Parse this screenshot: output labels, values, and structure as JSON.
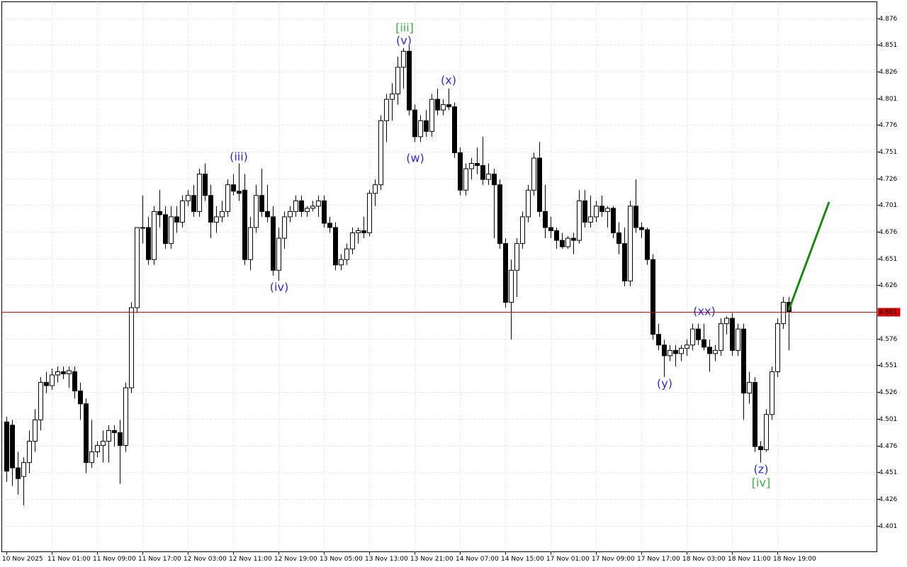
{
  "chart_data": {
    "type": "candlestick",
    "categories": [
      "10 Nov 2025",
      null,
      null,
      null,
      null,
      null,
      null,
      null,
      "11 Nov 01:00",
      null,
      null,
      null,
      null,
      null,
      null,
      null,
      "11 Nov 09:00",
      null,
      null,
      null,
      null,
      null,
      null,
      null,
      "11 Nov 17:00",
      null,
      null,
      null,
      null,
      null,
      null,
      null,
      "12 Nov 03:00",
      null,
      null,
      null,
      null,
      null,
      null,
      null,
      "12 Nov 11:00",
      null,
      null,
      null,
      null,
      null,
      null,
      null,
      "12 Nov 19:00",
      null,
      null,
      null,
      null,
      null,
      null,
      null,
      "13 Nov 05:00",
      null,
      null,
      null,
      null,
      null,
      null,
      null,
      "13 Nov 13:00",
      null,
      null,
      null,
      null,
      null,
      null,
      null,
      "13 Nov 21:00",
      null,
      null,
      null,
      null,
      null,
      null,
      null,
      "14 Nov 07:00",
      null,
      null,
      null,
      null,
      null,
      null,
      null,
      "14 Nov 15:00",
      null,
      null,
      null,
      null,
      null,
      null,
      null,
      "17 Nov 01:00",
      null,
      null,
      null,
      null,
      null,
      null,
      null,
      "17 Nov 09:00",
      null,
      null,
      null,
      null,
      null,
      null,
      null,
      "17 Nov 17:00",
      null,
      null,
      null,
      null,
      null,
      null,
      null,
      "18 Nov 03:00",
      null,
      null,
      null,
      null,
      null,
      null,
      null,
      "18 Nov 11:00",
      null,
      null,
      null,
      null,
      null,
      null,
      null,
      "18 Nov 19:00",
      null,
      null
    ],
    "open": [
      4.498,
      4.495,
      4.455,
      4.447,
      4.46,
      4.48,
      4.5,
      4.535,
      4.532,
      4.542,
      4.545,
      4.543,
      4.545,
      4.527,
      4.515,
      4.46,
      4.47,
      4.476,
      4.48,
      4.49,
      4.488,
      4.476,
      4.53,
      4.605,
      4.68,
      4.68,
      4.65,
      4.695,
      4.692,
      4.665,
      4.69,
      4.685,
      4.705,
      4.71,
      4.695,
      4.73,
      4.71,
      4.685,
      4.69,
      4.695,
      4.72,
      4.714,
      4.715,
      4.65,
      4.68,
      4.71,
      4.695,
      4.69,
      4.64,
      4.67,
      4.69,
      4.695,
      4.705,
      4.695,
      4.698,
      4.7,
      4.705,
      4.684,
      4.68,
      4.645,
      4.65,
      4.66,
      4.675,
      4.677,
      4.675,
      4.712,
      4.72,
      4.78,
      4.8,
      4.805,
      4.83,
      4.845,
      4.79,
      4.765,
      4.78,
      4.77,
      4.8,
      4.79,
      4.795,
      4.793,
      4.75,
      4.715,
      4.735,
      4.74,
      4.738,
      4.725,
      4.73,
      4.72,
      4.665,
      4.61,
      4.64,
      4.665,
      4.69,
      4.715,
      4.745,
      4.695,
      4.68,
      4.677,
      4.668,
      4.662,
      4.67,
      4.668,
      4.705,
      4.685,
      4.69,
      4.7,
      4.695,
      4.698,
      4.675,
      4.665,
      4.63,
      4.7,
      4.68,
      4.678,
      4.65,
      4.58,
      4.57,
      4.56,
      4.565,
      4.562,
      4.567,
      4.57,
      4.585,
      4.575,
      4.568,
      4.562,
      4.565,
      4.59,
      4.595,
      4.565,
      4.585,
      4.525,
      4.535,
      4.475,
      4.472,
      4.505,
      4.545,
      4.59,
      4.61
    ],
    "high": [
      4.503,
      4.5,
      4.47,
      4.465,
      4.49,
      4.51,
      4.54,
      4.545,
      4.548,
      4.55,
      4.55,
      4.55,
      4.55,
      4.535,
      4.52,
      4.5,
      4.48,
      4.49,
      4.495,
      4.495,
      4.5,
      4.535,
      4.61,
      4.68,
      4.71,
      4.69,
      4.7,
      4.715,
      4.7,
      4.7,
      4.7,
      4.71,
      4.715,
      4.72,
      4.735,
      4.74,
      4.72,
      4.7,
      4.705,
      4.725,
      4.73,
      4.74,
      4.73,
      4.69,
      4.72,
      4.735,
      4.72,
      4.7,
      4.68,
      4.695,
      4.7,
      4.71,
      4.71,
      4.7,
      4.705,
      4.71,
      4.71,
      4.69,
      4.685,
      4.655,
      4.665,
      4.68,
      4.68,
      4.69,
      4.715,
      4.725,
      4.785,
      4.805,
      4.815,
      4.84,
      4.848,
      4.85,
      4.795,
      4.785,
      4.79,
      4.805,
      4.81,
      4.8,
      4.81,
      4.797,
      4.755,
      4.74,
      4.745,
      4.755,
      4.765,
      4.74,
      4.735,
      4.725,
      4.67,
      4.65,
      4.67,
      4.695,
      4.72,
      4.75,
      4.76,
      4.72,
      4.69,
      4.68,
      4.675,
      4.672,
      4.675,
      4.715,
      4.715,
      4.71,
      4.705,
      4.71,
      4.7,
      4.7,
      4.685,
      4.68,
      4.705,
      4.725,
      4.685,
      4.68,
      4.655,
      4.59,
      4.575,
      4.57,
      4.57,
      4.57,
      4.575,
      4.59,
      4.59,
      4.59,
      4.575,
      4.57,
      4.595,
      4.597,
      4.6,
      4.59,
      4.59,
      4.545,
      4.54,
      4.48,
      4.51,
      4.55,
      4.595,
      4.615,
      4.615
    ],
    "low": [
      4.442,
      4.438,
      4.43,
      4.42,
      4.45,
      4.47,
      4.49,
      4.525,
      4.528,
      4.535,
      4.538,
      4.53,
      4.52,
      4.5,
      4.45,
      4.455,
      4.465,
      4.46,
      4.46,
      4.475,
      4.44,
      4.47,
      4.525,
      4.6,
      4.665,
      4.645,
      4.645,
      4.68,
      4.66,
      4.66,
      4.675,
      4.68,
      4.7,
      4.69,
      4.69,
      4.705,
      4.67,
      4.675,
      4.685,
      4.69,
      4.71,
      4.705,
      4.645,
      4.64,
      4.675,
      4.69,
      4.685,
      4.635,
      4.63,
      4.66,
      4.685,
      4.69,
      4.69,
      4.69,
      4.695,
      4.69,
      4.68,
      4.675,
      4.64,
      4.64,
      4.645,
      4.655,
      4.665,
      4.67,
      4.672,
      4.7,
      4.715,
      4.76,
      4.78,
      4.795,
      4.81,
      4.785,
      4.76,
      4.76,
      4.765,
      4.765,
      4.785,
      4.785,
      4.79,
      4.745,
      4.71,
      4.71,
      4.725,
      4.73,
      4.72,
      4.72,
      4.67,
      4.66,
      4.605,
      4.575,
      4.615,
      4.66,
      4.685,
      4.71,
      4.69,
      4.67,
      4.67,
      4.66,
      4.66,
      4.66,
      4.655,
      4.665,
      4.68,
      4.68,
      4.685,
      4.69,
      4.68,
      4.67,
      4.655,
      4.625,
      4.625,
      4.675,
      4.67,
      4.645,
      4.575,
      4.565,
      4.54,
      4.555,
      4.55,
      4.555,
      4.56,
      4.565,
      4.57,
      4.565,
      4.545,
      4.555,
      4.56,
      4.58,
      4.56,
      4.56,
      4.5,
      4.515,
      4.47,
      4.46,
      4.47,
      4.5,
      4.54,
      4.585,
      4.565
    ],
    "close": [
      4.452,
      4.455,
      4.445,
      4.46,
      4.48,
      4.5,
      4.535,
      4.532,
      4.542,
      4.545,
      4.543,
      4.546,
      4.527,
      4.515,
      4.46,
      4.47,
      4.476,
      4.48,
      4.49,
      4.488,
      4.476,
      4.53,
      4.605,
      4.68,
      4.68,
      4.65,
      4.695,
      4.692,
      4.665,
      4.69,
      4.685,
      4.705,
      4.71,
      4.695,
      4.73,
      4.71,
      4.685,
      4.69,
      4.695,
      4.72,
      4.714,
      4.712,
      4.65,
      4.68,
      4.71,
      4.695,
      4.69,
      4.64,
      4.67,
      4.69,
      4.695,
      4.705,
      4.695,
      4.698,
      4.7,
      4.705,
      4.684,
      4.68,
      4.645,
      4.65,
      4.66,
      4.675,
      4.677,
      4.675,
      4.712,
      4.72,
      4.78,
      4.8,
      4.805,
      4.83,
      4.845,
      4.79,
      4.765,
      4.78,
      4.77,
      4.8,
      4.79,
      4.795,
      4.793,
      4.75,
      4.715,
      4.735,
      4.74,
      4.738,
      4.725,
      4.73,
      4.72,
      4.665,
      4.61,
      4.64,
      4.665,
      4.69,
      4.715,
      4.745,
      4.695,
      4.68,
      4.677,
      4.668,
      4.662,
      4.67,
      4.668,
      4.705,
      4.685,
      4.69,
      4.7,
      4.695,
      4.698,
      4.675,
      4.665,
      4.63,
      4.7,
      4.68,
      4.678,
      4.65,
      4.58,
      4.57,
      4.56,
      4.565,
      4.562,
      4.567,
      4.57,
      4.585,
      4.575,
      4.568,
      4.562,
      4.565,
      4.59,
      4.595,
      4.565,
      4.585,
      4.525,
      4.535,
      4.475,
      4.472,
      4.505,
      4.545,
      4.59,
      4.61,
      4.601
    ],
    "ylim": [
      4.3765,
      4.8913
    ],
    "yticks": [
      4.401,
      4.426,
      4.451,
      4.476,
      4.501,
      4.526,
      4.551,
      4.576,
      4.626,
      4.651,
      4.676,
      4.701,
      4.726,
      4.751,
      4.776,
      4.801,
      4.826,
      4.851,
      4.876
    ],
    "grid": true,
    "last_price": 4.601,
    "last_price_color": "#d40000",
    "bull_color": "#ffffff",
    "bear_color": "#000000",
    "annotations": [
      {
        "text": "[iii]",
        "color": "#3cb043"
      },
      {
        "text": "(v)",
        "color": "#2b2bd4"
      },
      {
        "text": "(iii)",
        "color": "#2b2bd4"
      },
      {
        "text": "(iv)",
        "color": "#2b2bd4"
      },
      {
        "text": "(x)",
        "color": "#2b2bd4"
      },
      {
        "text": "(w)",
        "color": "#2b2bd4"
      },
      {
        "text": "(y)",
        "color": "#2b2bd4"
      },
      {
        "text": "(xx)",
        "color": "#2b2bd4"
      },
      {
        "text": "(z)",
        "color": "#2b2bd4"
      },
      {
        "text": "[iv]",
        "color": "#3cb043"
      }
    ]
  }
}
